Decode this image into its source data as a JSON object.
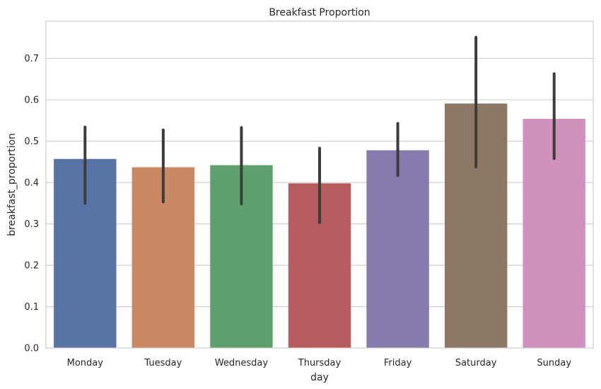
{
  "chart_data": {
    "type": "bar",
    "title": "Breakfast Proportion",
    "xlabel": "day",
    "ylabel": "breakfast_proportion",
    "categories": [
      "Monday",
      "Tuesday",
      "Wednesday",
      "Thursday",
      "Friday",
      "Saturday",
      "Sunday"
    ],
    "values": [
      0.457,
      0.437,
      0.442,
      0.398,
      0.478,
      0.591,
      0.554
    ],
    "ci_low": [
      0.35,
      0.353,
      0.348,
      0.303,
      0.417,
      0.438,
      0.458
    ],
    "ci_high": [
      0.534,
      0.527,
      0.533,
      0.483,
      0.543,
      0.751,
      0.663
    ],
    "colors": [
      "#5874a4",
      "#cc8763",
      "#5fa06f",
      "#b75c5e",
      "#877bae",
      "#8d7866",
      "#d092bd"
    ],
    "errorbar_color": "#3c3c3c",
    "ylim": [
      0,
      0.79
    ],
    "yticks": [
      "0.0",
      "0.1",
      "0.2",
      "0.3",
      "0.4",
      "0.5",
      "0.6",
      "0.7"
    ],
    "grid": true
  }
}
